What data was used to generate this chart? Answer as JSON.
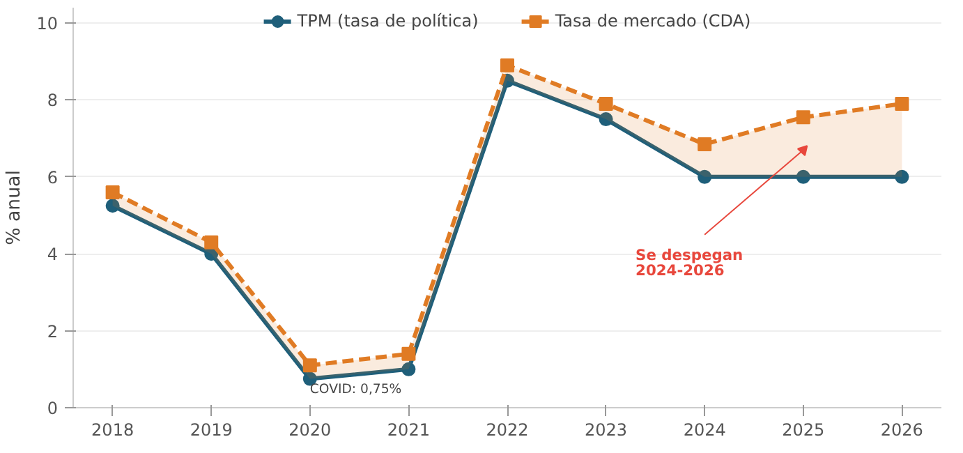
{
  "chart_data": {
    "type": "line",
    "ylabel": "% anual",
    "x": [
      2018,
      2019,
      2020,
      2021,
      2022,
      2023,
      2024,
      2025,
      2026
    ],
    "series": [
      {
        "name": "TPM (tasa de política)",
        "color": "#1f5f7a",
        "values": [
          5.25,
          4,
          0.75,
          1,
          8.5,
          7.5,
          6,
          6,
          6
        ],
        "marker": "circle",
        "line_style": "solid"
      },
      {
        "name": "Tasa de mercado (CDA)",
        "color": "#e07b24",
        "values": [
          5.6,
          4.3,
          1.1,
          1.4,
          8.9,
          7.9,
          6.85,
          7.55,
          7.9
        ],
        "marker": "square",
        "line_style": "dashed",
        "lower": [
          5.25,
          4,
          0.75,
          1,
          8.5,
          7.5,
          6,
          6,
          6
        ],
        "upper": [
          5.6,
          4.3,
          1.1,
          1.4,
          8.9,
          7.9,
          6.85,
          7.55,
          7.9
        ]
      }
    ],
    "xlim": [
      2017.6,
      2026.4
    ],
    "xticks": [
      2018,
      2019,
      2020,
      2021,
      2022,
      2023,
      2024,
      2025,
      2026
    ],
    "ylim": [
      0,
      10.4
    ],
    "yticks": [
      0,
      2,
      4,
      6,
      8,
      10
    ],
    "grid": "y",
    "legend": "top",
    "annotations": [
      {
        "text": "COVID: 0,75%",
        "x": 2020,
        "y": 0.75
      },
      {
        "text": "Se despegan\n2024-2026",
        "x": 2025,
        "y": 6.7
      }
    ]
  }
}
